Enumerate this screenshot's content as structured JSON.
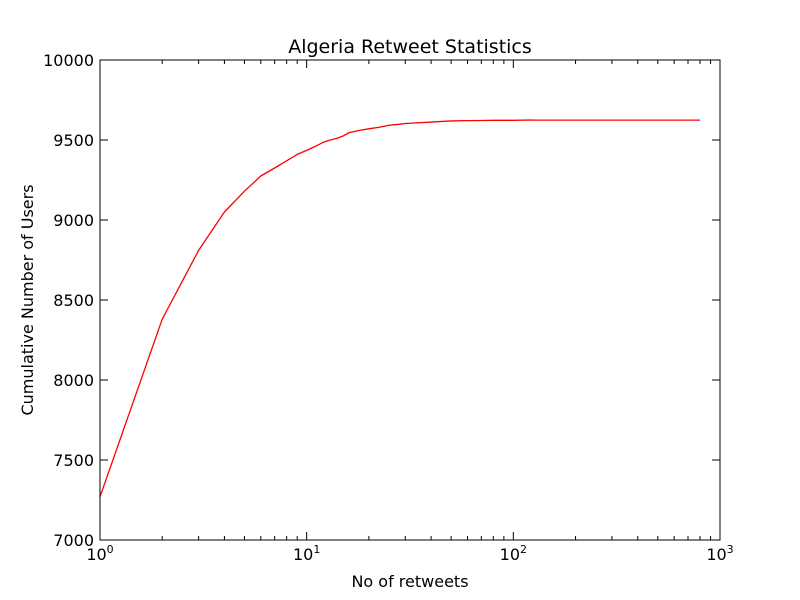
{
  "chart_data": {
    "type": "line",
    "title": "Algeria Retweet Statistics",
    "xlabel": "No of retweets",
    "ylabel": "Cumulative Number of Users",
    "xscale": "log",
    "xlim": [
      1,
      1000
    ],
    "ylim": [
      7000,
      10000
    ],
    "grid": false,
    "x_ticks": [
      {
        "value": 1,
        "base": "10",
        "exp": "0"
      },
      {
        "value": 10,
        "base": "10",
        "exp": "1"
      },
      {
        "value": 100,
        "base": "10",
        "exp": "2"
      },
      {
        "value": 1000,
        "base": "10",
        "exp": "3"
      }
    ],
    "y_ticks": [
      {
        "value": 7000,
        "label": "7000"
      },
      {
        "value": 7500,
        "label": "7500"
      },
      {
        "value": 8000,
        "label": "8000"
      },
      {
        "value": 8500,
        "label": "8500"
      },
      {
        "value": 9000,
        "label": "9000"
      },
      {
        "value": 9500,
        "label": "9500"
      },
      {
        "value": 10000,
        "label": "10000"
      }
    ],
    "series": [
      {
        "color": "#ff0000",
        "points": [
          [
            1,
            7270
          ],
          [
            2,
            8380
          ],
          [
            3,
            8810
          ],
          [
            4,
            9050
          ],
          [
            5,
            9180
          ],
          [
            6,
            9275
          ],
          [
            7,
            9325
          ],
          [
            8,
            9370
          ],
          [
            9,
            9410
          ],
          [
            10,
            9435
          ],
          [
            11,
            9460
          ],
          [
            12,
            9485
          ],
          [
            13,
            9500
          ],
          [
            14,
            9510
          ],
          [
            15,
            9525
          ],
          [
            16,
            9545
          ],
          [
            18,
            9560
          ],
          [
            20,
            9570
          ],
          [
            23,
            9582
          ],
          [
            25,
            9592
          ],
          [
            28,
            9598
          ],
          [
            30,
            9603
          ],
          [
            35,
            9608
          ],
          [
            40,
            9612
          ],
          [
            45,
            9616
          ],
          [
            50,
            9619
          ],
          [
            60,
            9621
          ],
          [
            70,
            9622
          ],
          [
            80,
            9623
          ],
          [
            90,
            9623
          ],
          [
            100,
            9623
          ],
          [
            120,
            9625
          ],
          [
            130,
            9624
          ],
          [
            150,
            9624
          ],
          [
            200,
            9624
          ],
          [
            300,
            9624
          ],
          [
            500,
            9624
          ],
          [
            700,
            9624
          ],
          [
            800,
            9624
          ]
        ]
      }
    ]
  }
}
